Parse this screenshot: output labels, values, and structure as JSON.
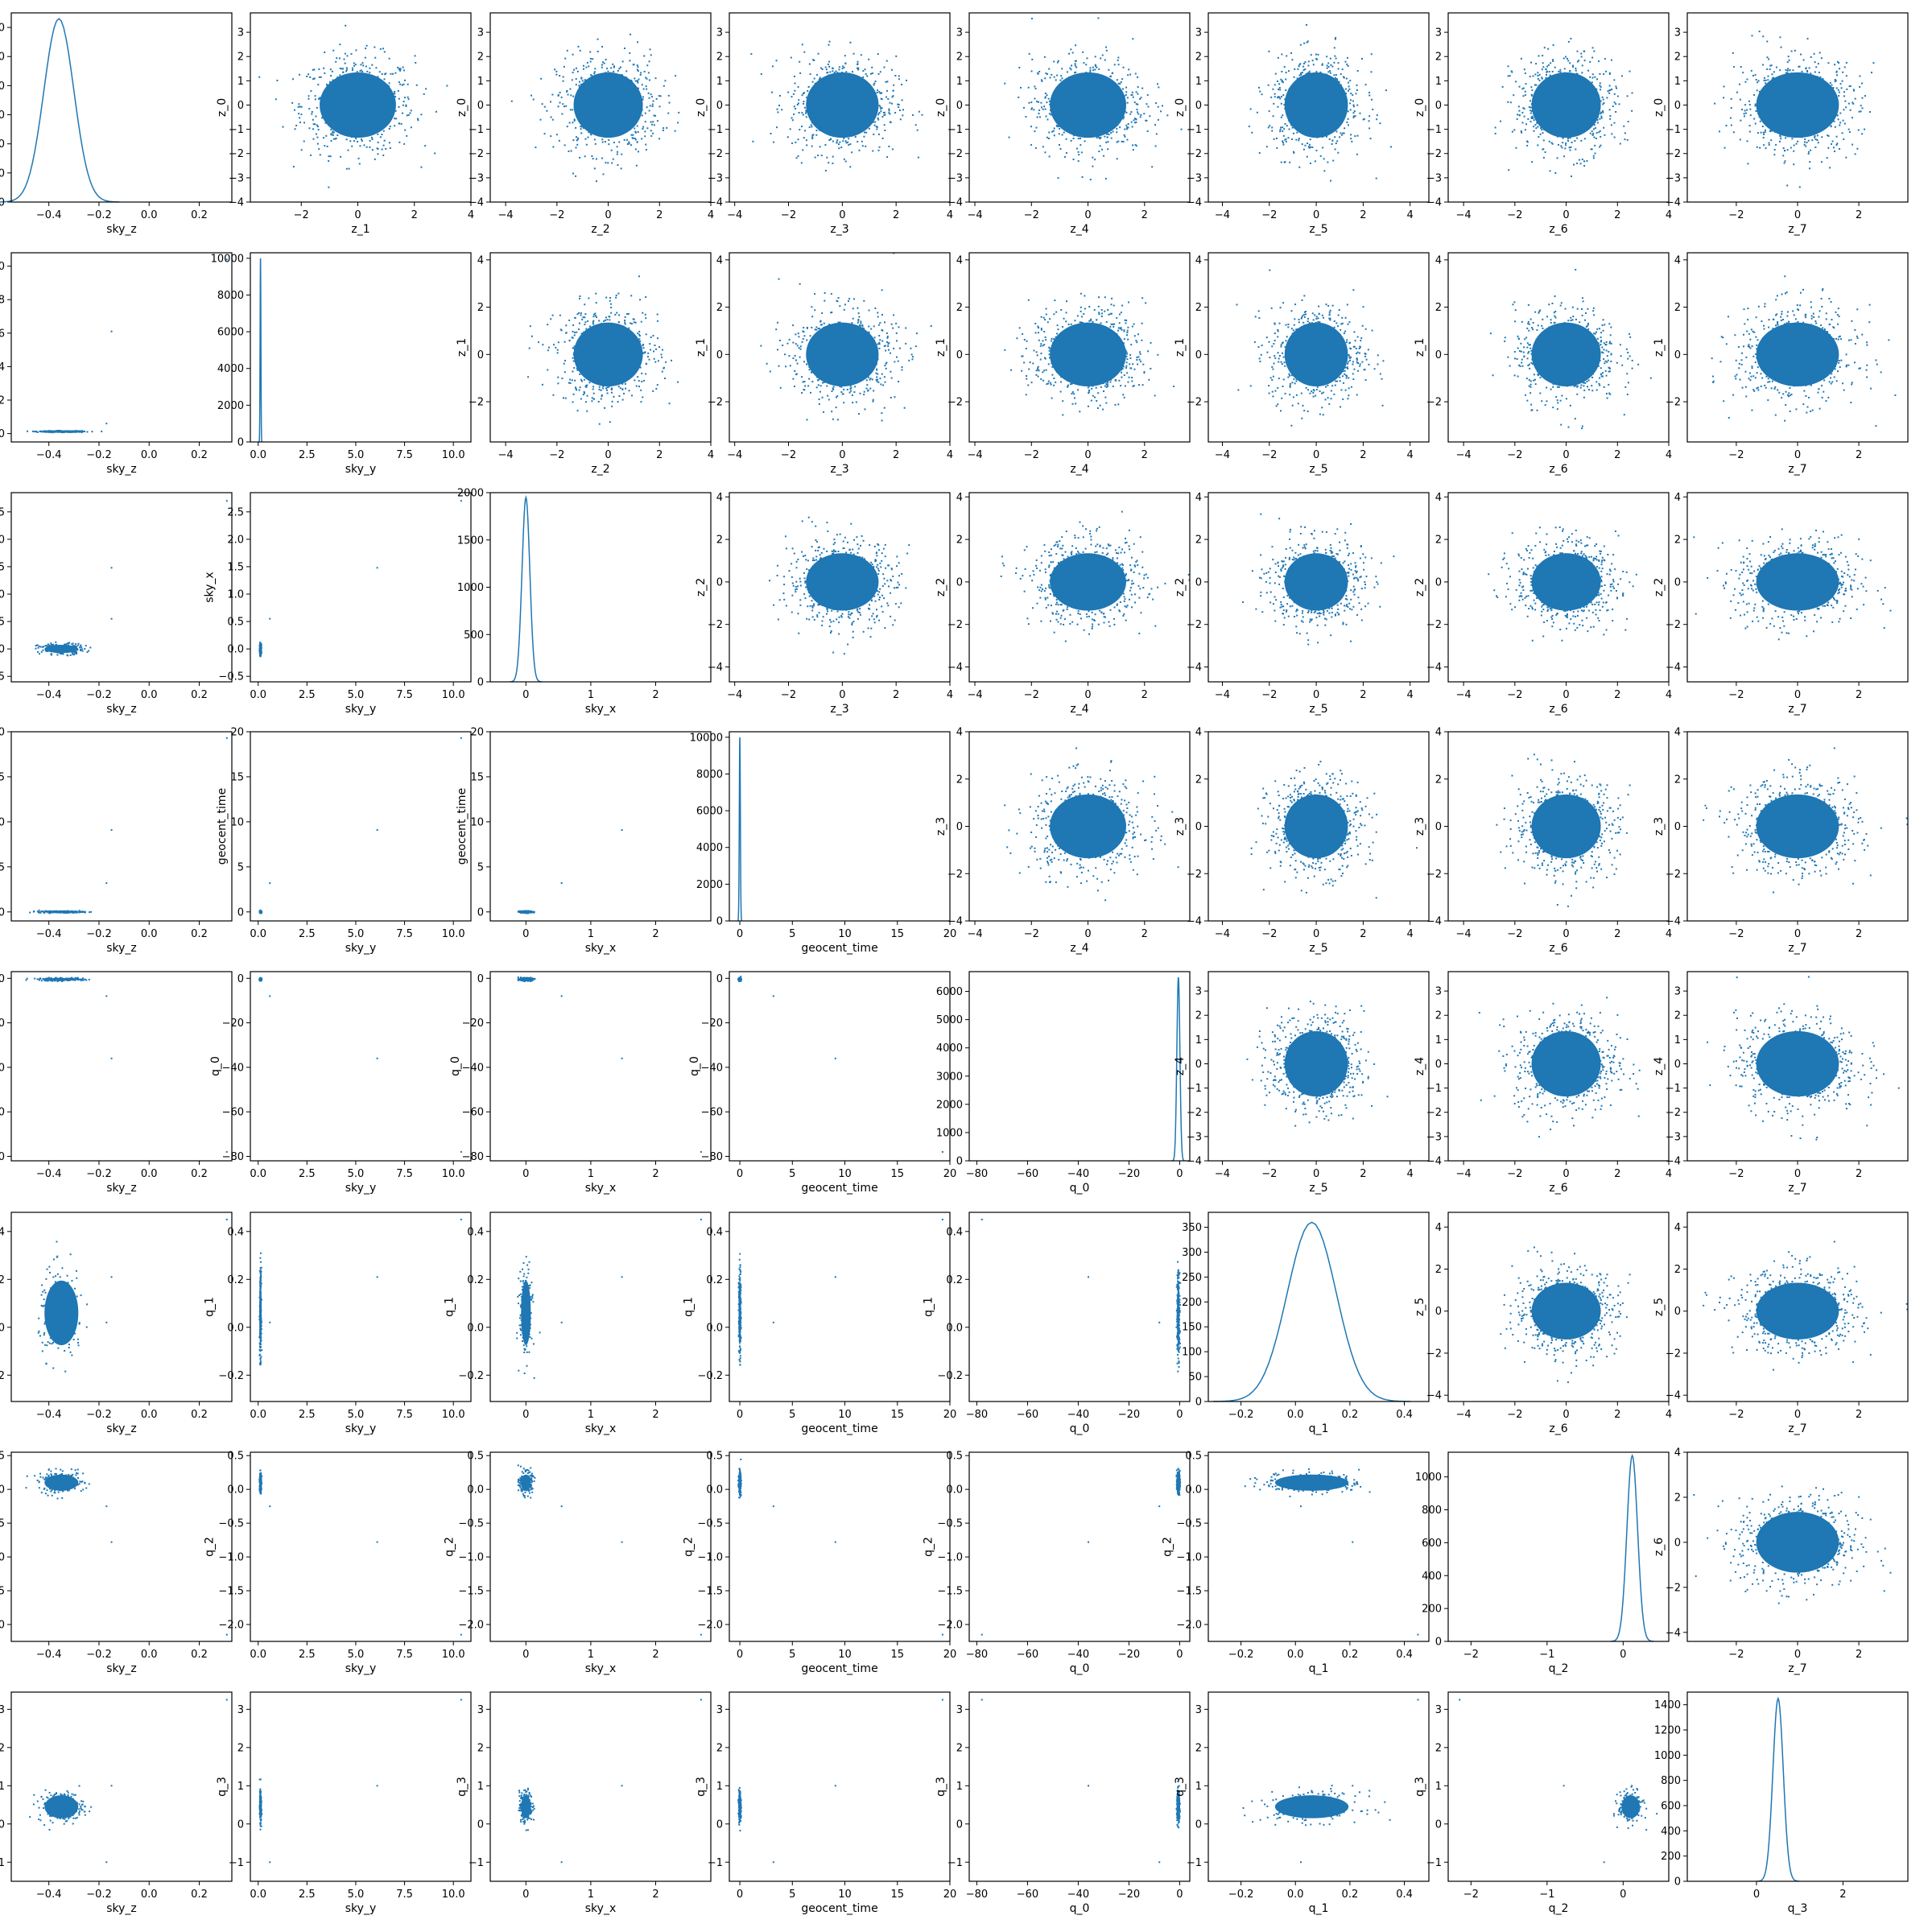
{
  "colors": {
    "marker": "#1f77b4",
    "axes": "#000000",
    "background": "#ffffff"
  },
  "chart_data": {
    "type": "pairplot",
    "title": "",
    "n_samples_approx": 10000,
    "variables_x": [
      "sky_z",
      "sky_y",
      "sky_x",
      "geocent_time",
      "q_0",
      "q_1",
      "q_2",
      "q_3"
    ],
    "variables_y": [
      "z_0",
      "z_1",
      "z_2",
      "z_3",
      "z_4",
      "z_5",
      "z_6",
      "z_7"
    ],
    "column_labels": [
      "sky_z",
      "sky_y",
      "sky_x",
      "geocent_time",
      "q_0",
      "q_1",
      "q_2",
      "q_3"
    ],
    "row_labels_lower": [
      "z_0",
      "sky_y",
      "sky_x",
      "geocent_time",
      "q_0",
      "q_1",
      "q_2",
      "q_3"
    ],
    "diagonal_histograms": [
      {
        "variable": "sky_z",
        "xlim": [
          -0.55,
          0.33
        ],
        "ylim": [
          0,
          650
        ],
        "xticks": [
          -0.4,
          -0.2,
          0.0,
          0.2
        ],
        "yticks": [
          0,
          100,
          200,
          300,
          400,
          500,
          600
        ],
        "peak_x": -0.36,
        "peak_count": 630,
        "width": 0.06
      },
      {
        "variable": "sky_y",
        "xlim": [
          -0.4,
          10.9
        ],
        "ylim": [
          0,
          10300
        ],
        "xticks": [
          0.0,
          2.5,
          5.0,
          7.5,
          10.0
        ],
        "yticks": [
          0,
          2000,
          4000,
          6000,
          8000,
          10000
        ],
        "peak_x": 0.12,
        "peak_count": 10000,
        "width": 0.02
      },
      {
        "variable": "sky_x",
        "xlim": [
          -0.55,
          2.85
        ],
        "ylim": [
          0,
          2000
        ],
        "xticks": [
          0,
          1,
          2
        ],
        "yticks": [
          0,
          500,
          1000,
          1500,
          2000
        ],
        "peak_x": 0.0,
        "peak_count": 1950,
        "width": 0.06
      },
      {
        "variable": "geocent_time",
        "xlim": [
          -1,
          20
        ],
        "ylim": [
          0,
          10300
        ],
        "xticks": [
          0,
          5,
          10,
          15,
          20
        ],
        "yticks": [
          0,
          2000,
          4000,
          6000,
          8000,
          10000
        ],
        "peak_x": 0.0,
        "peak_count": 10000,
        "width": 0.05
      },
      {
        "variable": "q_0",
        "xlim": [
          -83,
          4
        ],
        "ylim": [
          0,
          6700
        ],
        "xticks": [
          -80,
          -60,
          -40,
          -20,
          0
        ],
        "yticks": [
          0,
          1000,
          2000,
          3000,
          4000,
          5000,
          6000
        ],
        "peak_x": -0.5,
        "peak_count": 6500,
        "width": 0.6
      },
      {
        "variable": "q_1",
        "xlim": [
          -0.32,
          0.49
        ],
        "ylim": [
          0,
          380
        ],
        "xticks": [
          -0.2,
          0.0,
          0.2,
          0.4
        ],
        "yticks": [
          0,
          50,
          100,
          150,
          200,
          250,
          300,
          350
        ],
        "peak_x": 0.06,
        "peak_count": 360,
        "width": 0.09
      },
      {
        "variable": "q_2",
        "xlim": [
          -2.3,
          0.6
        ],
        "ylim": [
          0,
          1150
        ],
        "xticks": [
          -2,
          -1,
          0
        ],
        "yticks": [
          0,
          200,
          400,
          600,
          800,
          1000
        ],
        "peak_x": 0.12,
        "peak_count": 1130,
        "width": 0.07
      },
      {
        "variable": "q_3",
        "xlim": [
          -1.6,
          3.5
        ],
        "ylim": [
          0,
          1500
        ],
        "xticks": [
          0,
          2
        ],
        "yticks": [
          0,
          200,
          400,
          600,
          800,
          1000,
          1200,
          1400
        ],
        "peak_x": 0.5,
        "peak_count": 1450,
        "width": 0.12
      }
    ],
    "lower_triangle_scatter": [
      {
        "row": 1,
        "col": 0,
        "x": "sky_z",
        "y": "sky_y",
        "ylim": [
          -0.5,
          10.8
        ],
        "yticks": [
          0,
          2,
          4,
          6,
          8,
          10
        ],
        "outliers": [
          [
            0.31,
            10.4
          ],
          [
            -0.15,
            6.1
          ],
          [
            -0.17,
            0.6
          ]
        ]
      },
      {
        "row": 2,
        "col": 0,
        "x": "sky_z",
        "y": "sky_x",
        "ylim": [
          -0.6,
          2.85
        ],
        "yticks": [
          -0.5,
          0.0,
          0.5,
          1.0,
          1.5,
          2.0,
          2.5
        ],
        "outliers": [
          [
            0.31,
            2.7
          ],
          [
            -0.15,
            1.48
          ],
          [
            -0.15,
            0.55
          ]
        ]
      },
      {
        "row": 2,
        "col": 1,
        "x": "sky_y",
        "y": "sky_x",
        "outliers": [
          [
            10.4,
            2.7
          ],
          [
            6.1,
            1.48
          ],
          [
            0.6,
            0.55
          ]
        ]
      },
      {
        "row": 3,
        "col": 0,
        "x": "sky_z",
        "y": "geocent_time",
        "ylim": [
          -1,
          20
        ],
        "yticks": [
          0,
          5,
          10,
          15,
          20
        ],
        "outliers": [
          [
            0.31,
            19.3
          ],
          [
            -0.15,
            9.1
          ],
          [
            -0.17,
            3.2
          ]
        ]
      },
      {
        "row": 3,
        "col": 1,
        "x": "sky_y",
        "y": "geocent_time",
        "outliers": [
          [
            10.4,
            19.3
          ],
          [
            6.1,
            9.1
          ],
          [
            0.6,
            3.2
          ]
        ]
      },
      {
        "row": 3,
        "col": 2,
        "x": "sky_x",
        "y": "geocent_time",
        "outliers": [
          [
            2.7,
            19.3
          ],
          [
            1.48,
            9.1
          ],
          [
            0.55,
            3.2
          ]
        ]
      },
      {
        "row": 4,
        "col": 0,
        "x": "sky_z",
        "y": "q_0",
        "ylim": [
          -82,
          3
        ],
        "yticks": [
          -80,
          -60,
          -40,
          -20,
          0
        ],
        "outliers": [
          [
            0.31,
            -78
          ],
          [
            -0.15,
            -36
          ],
          [
            -0.17,
            -8
          ]
        ]
      },
      {
        "row": 4,
        "col": 1,
        "x": "sky_y",
        "y": "q_0",
        "outliers": [
          [
            10.4,
            -78
          ],
          [
            6.1,
            -36
          ],
          [
            0.6,
            -8
          ]
        ]
      },
      {
        "row": 4,
        "col": 2,
        "x": "sky_x",
        "y": "q_0",
        "outliers": [
          [
            2.7,
            -78
          ],
          [
            1.48,
            -36
          ],
          [
            0.55,
            -8
          ]
        ]
      },
      {
        "row": 4,
        "col": 3,
        "x": "geocent_time",
        "y": "q_0",
        "outliers": [
          [
            19.3,
            -78
          ],
          [
            9.1,
            -36
          ],
          [
            3.2,
            -8
          ]
        ]
      },
      {
        "row": 5,
        "col": 0,
        "x": "sky_z",
        "y": "q_1",
        "ylim": [
          -0.31,
          0.48
        ],
        "yticks": [
          -0.2,
          0.0,
          0.2,
          0.4
        ],
        "outliers": [
          [
            0.31,
            0.45
          ],
          [
            -0.15,
            0.21
          ],
          [
            -0.17,
            0.02
          ]
        ]
      },
      {
        "row": 5,
        "col": 1,
        "x": "sky_y",
        "y": "q_1",
        "outliers": [
          [
            10.4,
            0.45
          ],
          [
            6.1,
            0.21
          ],
          [
            0.6,
            0.02
          ]
        ]
      },
      {
        "row": 5,
        "col": 2,
        "x": "sky_x",
        "y": "q_1",
        "outliers": [
          [
            2.7,
            0.45
          ],
          [
            1.48,
            0.21
          ],
          [
            0.55,
            0.02
          ]
        ]
      },
      {
        "row": 5,
        "col": 3,
        "x": "geocent_time",
        "y": "q_1",
        "outliers": [
          [
            19.3,
            0.45
          ],
          [
            9.1,
            0.21
          ],
          [
            3.2,
            0.02
          ]
        ]
      },
      {
        "row": 5,
        "col": 4,
        "x": "q_0",
        "y": "q_1",
        "outliers": [
          [
            -78,
            0.45
          ],
          [
            -36,
            0.21
          ],
          [
            -8,
            0.02
          ]
        ]
      },
      {
        "row": 6,
        "col": 0,
        "x": "sky_z",
        "y": "q_2",
        "ylim": [
          -2.25,
          0.55
        ],
        "yticks": [
          -2.0,
          -1.5,
          -1.0,
          -0.5,
          0.0,
          0.5
        ],
        "outliers": [
          [
            0.31,
            -2.15
          ],
          [
            -0.15,
            -0.78
          ],
          [
            -0.17,
            -0.25
          ]
        ]
      },
      {
        "row": 6,
        "col": 1,
        "x": "sky_y",
        "y": "q_2",
        "outliers": [
          [
            10.4,
            -2.15
          ],
          [
            6.1,
            -0.78
          ],
          [
            0.6,
            -0.25
          ]
        ]
      },
      {
        "row": 6,
        "col": 2,
        "x": "sky_x",
        "y": "q_2",
        "outliers": [
          [
            2.7,
            -2.15
          ],
          [
            1.48,
            -0.78
          ],
          [
            0.55,
            -0.25
          ]
        ]
      },
      {
        "row": 6,
        "col": 3,
        "x": "geocent_time",
        "y": "q_2",
        "outliers": [
          [
            19.3,
            -2.15
          ],
          [
            9.1,
            -0.78
          ],
          [
            3.2,
            -0.25
          ]
        ]
      },
      {
        "row": 6,
        "col": 4,
        "x": "q_0",
        "y": "q_2",
        "outliers": [
          [
            -78,
            -2.15
          ],
          [
            -36,
            -0.78
          ],
          [
            -8,
            -0.25
          ]
        ]
      },
      {
        "row": 6,
        "col": 5,
        "x": "q_1",
        "y": "q_2",
        "outliers": [
          [
            0.45,
            -2.15
          ],
          [
            0.21,
            -0.78
          ],
          [
            0.02,
            -0.25
          ]
        ]
      },
      {
        "row": 7,
        "col": 0,
        "x": "sky_z",
        "y": "q_3",
        "ylim": [
          -1.5,
          3.45
        ],
        "yticks": [
          -1,
          0,
          1,
          2,
          3
        ],
        "outliers": [
          [
            0.31,
            3.25
          ],
          [
            -0.15,
            1.0
          ],
          [
            -0.17,
            -1.0
          ]
        ]
      },
      {
        "row": 7,
        "col": 1,
        "x": "sky_y",
        "y": "q_3",
        "outliers": [
          [
            10.4,
            3.25
          ],
          [
            6.1,
            1.0
          ],
          [
            0.6,
            -1.0
          ]
        ]
      },
      {
        "row": 7,
        "col": 2,
        "x": "sky_x",
        "y": "q_3",
        "outliers": [
          [
            2.7,
            3.25
          ],
          [
            1.48,
            1.0
          ],
          [
            0.55,
            -1.0
          ]
        ]
      },
      {
        "row": 7,
        "col": 3,
        "x": "geocent_time",
        "y": "q_3",
        "outliers": [
          [
            19.3,
            3.25
          ],
          [
            9.1,
            1.0
          ],
          [
            3.2,
            -1.0
          ]
        ]
      },
      {
        "row": 7,
        "col": 4,
        "x": "q_0",
        "y": "q_3",
        "outliers": [
          [
            -78,
            3.25
          ],
          [
            -36,
            1.0
          ],
          [
            -8,
            -1.0
          ]
        ]
      },
      {
        "row": 7,
        "col": 5,
        "x": "q_1",
        "y": "q_3",
        "outliers": [
          [
            0.45,
            3.25
          ],
          [
            0.21,
            1.0
          ],
          [
            0.02,
            -1.0
          ]
        ]
      },
      {
        "row": 7,
        "col": 6,
        "x": "q_2",
        "y": "q_3",
        "outliers": [
          [
            -2.15,
            3.25
          ],
          [
            -0.78,
            1.0
          ],
          [
            -0.25,
            -1.0
          ]
        ]
      }
    ],
    "upper_triangle_scatter": {
      "description_values": {
        "distribution": "standard normal, centered at 0 with unit spread"
      },
      "column_axes": {
        "z_1": {
          "xlim": [
            -3.8,
            4.0
          ],
          "xticks": [
            -2,
            0,
            2,
            4
          ]
        },
        "z_2": {
          "xlim": [
            -4.6,
            4.0
          ],
          "xticks": [
            -4,
            -2,
            0,
            2,
            4
          ]
        },
        "z_3": {
          "xlim": [
            -4.2,
            4.0
          ],
          "xticks": [
            -4,
            -2,
            0,
            2,
            4
          ]
        },
        "z_4": {
          "xlim": [
            -4.2,
            3.6
          ],
          "xticks": [
            -4,
            -2,
            0,
            2
          ]
        },
        "z_5": {
          "xlim": [
            -4.6,
            4.8
          ],
          "xticks": [
            -4,
            -2,
            0,
            2,
            4
          ]
        },
        "z_6": {
          "xlim": [
            -4.6,
            4.0
          ],
          "xticks": [
            -4,
            -2,
            0,
            2,
            4
          ]
        },
        "z_7": {
          "xlim": [
            -3.6,
            3.6
          ],
          "xticks": [
            -2,
            0,
            2
          ]
        }
      },
      "row_axes": {
        "z_0": {
          "ylim": [
            -4.0,
            3.8
          ],
          "yticks": [
            -4,
            -3,
            -2,
            -1,
            0,
            1,
            2,
            3
          ]
        },
        "z_1": {
          "ylim": [
            -3.7,
            4.3
          ],
          "yticks": [
            -2,
            0,
            2,
            4
          ]
        },
        "z_2": {
          "ylim": [
            -4.7,
            4.2
          ],
          "yticks": [
            -4,
            -2,
            0,
            2,
            4
          ]
        },
        "z_3": {
          "ylim": [
            -4.0,
            4.0
          ],
          "yticks": [
            -4,
            -2,
            0,
            2,
            4
          ]
        },
        "z_4": {
          "ylim": [
            -4.0,
            3.8
          ],
          "yticks": [
            -4,
            -3,
            -2,
            -1,
            0,
            1,
            2,
            3
          ]
        },
        "z_5": {
          "ylim": [
            -4.3,
            4.7
          ],
          "yticks": [
            -4,
            -2,
            0,
            2,
            4
          ]
        },
        "z_6": {
          "ylim": [
            -4.4,
            4.0
          ],
          "yticks": [
            -4,
            -2,
            0,
            2,
            4
          ]
        }
      }
    }
  }
}
